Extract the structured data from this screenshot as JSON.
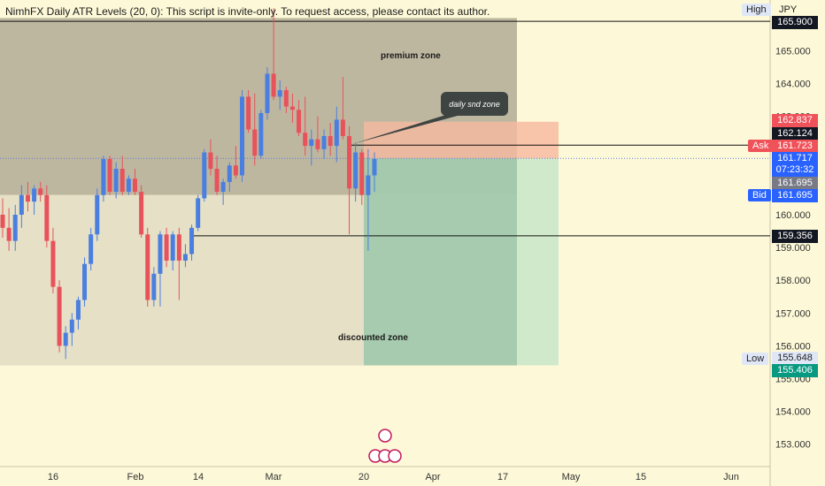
{
  "indicator": "NimhFX Daily ATR Levels (20, 0): This script is invite-only. To request access, please contact its author.",
  "currency": "JPY",
  "tags": {
    "high": "High",
    "low": "Low",
    "ask": "Ask",
    "bid": "Bid"
  },
  "price_labels": {
    "high": "165.900",
    "zone_top": "162.837",
    "entry": "162.124",
    "ask": "161.723",
    "last": "161.717",
    "countdown": "07:23:32",
    "gray": "161.695",
    "bid": "161.695",
    "level": "159.356",
    "low": "155.648",
    "target": "155.406"
  },
  "annotations": {
    "premium": "premium zone",
    "discounted": "discounted zone",
    "callout": "daily snd zone"
  },
  "colors": {
    "background": "#fdf9d8",
    "up": "#4a7fe0",
    "down": "#e8525b",
    "premium": "#beb7a0",
    "discount": "#e6e0c6",
    "supply": "#f6b8a0",
    "target": "#c8e6c9",
    "target_overlap": "#95bfa2"
  },
  "chart_data": {
    "type": "candlestick",
    "title": "",
    "xlabel": "",
    "ylabel": "",
    "ylim": [
      152.2,
      166.3
    ],
    "y_ticks": [
      "165.000",
      "164.000",
      "163.000",
      "162.000",
      "161.000",
      "160.000",
      "159.000",
      "158.000",
      "157.000",
      "156.000",
      "155.000",
      "154.000",
      "153.000"
    ],
    "x_ticks": [
      "16",
      "Feb",
      "14",
      "Mar",
      "20",
      "Apr",
      "17",
      "May",
      "15",
      "Jun"
    ],
    "levels": {
      "line_high": 165.9,
      "line_entry": 162.124,
      "line_level": 159.356,
      "line_last": 161.717
    },
    "zones": {
      "premium": [
        160.6,
        166.0
      ],
      "discount": [
        155.4,
        160.6
      ],
      "supply": [
        161.717,
        162.837
      ],
      "target": [
        155.406,
        161.717
      ]
    },
    "candles": [
      {
        "o": 160.0,
        "h": 160.5,
        "l": 159.3,
        "c": 159.6
      },
      {
        "o": 159.6,
        "h": 160.2,
        "l": 158.9,
        "c": 159.2
      },
      {
        "o": 159.2,
        "h": 160.3,
        "l": 158.9,
        "c": 160.0
      },
      {
        "o": 160.0,
        "h": 160.9,
        "l": 159.6,
        "c": 160.6
      },
      {
        "o": 160.6,
        "h": 161.0,
        "l": 160.1,
        "c": 160.4
      },
      {
        "o": 160.4,
        "h": 160.9,
        "l": 160.0,
        "c": 160.8
      },
      {
        "o": 160.8,
        "h": 161.0,
        "l": 160.4,
        "c": 160.6
      },
      {
        "o": 160.6,
        "h": 160.9,
        "l": 159.0,
        "c": 159.2
      },
      {
        "o": 159.2,
        "h": 159.6,
        "l": 157.6,
        "c": 157.8
      },
      {
        "o": 157.8,
        "h": 158.0,
        "l": 155.8,
        "c": 156.0
      },
      {
        "o": 156.0,
        "h": 156.6,
        "l": 155.6,
        "c": 156.4
      },
      {
        "o": 156.4,
        "h": 157.0,
        "l": 156.0,
        "c": 156.8
      },
      {
        "o": 156.8,
        "h": 157.5,
        "l": 156.5,
        "c": 157.4
      },
      {
        "o": 157.4,
        "h": 158.7,
        "l": 157.2,
        "c": 158.5
      },
      {
        "o": 158.5,
        "h": 159.6,
        "l": 158.3,
        "c": 159.4
      },
      {
        "o": 159.4,
        "h": 160.8,
        "l": 159.2,
        "c": 160.6
      },
      {
        "o": 160.6,
        "h": 161.8,
        "l": 160.4,
        "c": 161.7
      },
      {
        "o": 161.7,
        "h": 161.8,
        "l": 160.6,
        "c": 160.7
      },
      {
        "o": 160.7,
        "h": 161.6,
        "l": 160.5,
        "c": 161.4
      },
      {
        "o": 161.4,
        "h": 161.8,
        "l": 160.6,
        "c": 160.7
      },
      {
        "o": 160.7,
        "h": 161.2,
        "l": 160.6,
        "c": 161.1
      },
      {
        "o": 161.1,
        "h": 161.4,
        "l": 160.6,
        "c": 160.7
      },
      {
        "o": 160.7,
        "h": 160.9,
        "l": 159.3,
        "c": 159.4
      },
      {
        "o": 159.4,
        "h": 159.6,
        "l": 157.2,
        "c": 157.4
      },
      {
        "o": 157.4,
        "h": 158.4,
        "l": 157.2,
        "c": 158.2
      },
      {
        "o": 158.2,
        "h": 159.5,
        "l": 157.2,
        "c": 159.4
      },
      {
        "o": 159.4,
        "h": 159.6,
        "l": 158.4,
        "c": 158.6
      },
      {
        "o": 158.6,
        "h": 159.5,
        "l": 158.3,
        "c": 159.4
      },
      {
        "o": 159.4,
        "h": 159.6,
        "l": 157.4,
        "c": 158.6
      },
      {
        "o": 158.6,
        "h": 159.1,
        "l": 158.4,
        "c": 158.8
      },
      {
        "o": 158.8,
        "h": 159.7,
        "l": 158.6,
        "c": 159.6
      },
      {
        "o": 159.6,
        "h": 160.6,
        "l": 159.5,
        "c": 160.5
      },
      {
        "o": 160.5,
        "h": 162.0,
        "l": 160.4,
        "c": 161.9
      },
      {
        "o": 161.9,
        "h": 162.3,
        "l": 161.2,
        "c": 161.4
      },
      {
        "o": 161.4,
        "h": 161.8,
        "l": 160.6,
        "c": 160.7
      },
      {
        "o": 160.7,
        "h": 161.1,
        "l": 160.3,
        "c": 161.0
      },
      {
        "o": 161.0,
        "h": 161.6,
        "l": 160.7,
        "c": 161.5
      },
      {
        "o": 161.5,
        "h": 162.1,
        "l": 161.1,
        "c": 161.2
      },
      {
        "o": 161.2,
        "h": 163.8,
        "l": 161.0,
        "c": 163.6
      },
      {
        "o": 163.6,
        "h": 163.8,
        "l": 162.5,
        "c": 162.6
      },
      {
        "o": 162.6,
        "h": 163.7,
        "l": 161.5,
        "c": 161.8
      },
      {
        "o": 161.8,
        "h": 163.2,
        "l": 161.7,
        "c": 163.1
      },
      {
        "o": 163.1,
        "h": 164.5,
        "l": 162.9,
        "c": 164.3
      },
      {
        "o": 164.3,
        "h": 166.3,
        "l": 163.5,
        "c": 163.6
      },
      {
        "o": 163.6,
        "h": 164.1,
        "l": 163.2,
        "c": 163.8
      },
      {
        "o": 163.8,
        "h": 163.9,
        "l": 163.1,
        "c": 163.3
      },
      {
        "o": 163.3,
        "h": 163.7,
        "l": 162.8,
        "c": 163.2
      },
      {
        "o": 163.2,
        "h": 163.5,
        "l": 162.4,
        "c": 162.5
      },
      {
        "o": 162.5,
        "h": 163.6,
        "l": 161.8,
        "c": 162.1
      },
      {
        "o": 162.1,
        "h": 162.6,
        "l": 161.5,
        "c": 162.3
      },
      {
        "o": 162.3,
        "h": 163.0,
        "l": 161.9,
        "c": 162.0
      },
      {
        "o": 162.0,
        "h": 162.6,
        "l": 161.7,
        "c": 162.4
      },
      {
        "o": 162.4,
        "h": 162.8,
        "l": 161.8,
        "c": 162.1
      },
      {
        "o": 162.1,
        "h": 163.3,
        "l": 161.6,
        "c": 162.9
      },
      {
        "o": 162.9,
        "h": 164.2,
        "l": 162.3,
        "c": 162.4
      },
      {
        "o": 162.4,
        "h": 162.7,
        "l": 159.4,
        "c": 160.8
      },
      {
        "o": 160.8,
        "h": 162.2,
        "l": 160.4,
        "c": 161.9
      },
      {
        "o": 161.9,
        "h": 162.0,
        "l": 160.3,
        "c": 160.6
      },
      {
        "o": 160.6,
        "h": 162.0,
        "l": 158.9,
        "c": 161.2
      },
      {
        "o": 161.2,
        "h": 161.9,
        "l": 160.7,
        "c": 161.7
      }
    ]
  }
}
